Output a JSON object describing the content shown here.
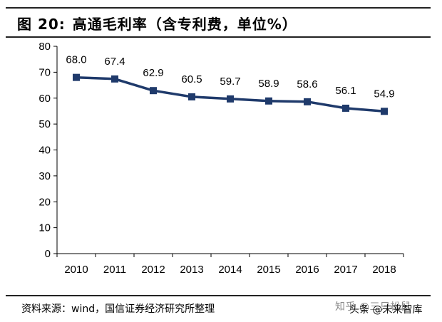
{
  "header": {
    "figure_label": "图 20:",
    "title": "高通毛利率（含专利费，单位%）"
  },
  "footer": {
    "source": "资料来源：wind，国信证券经济研究所整理",
    "watermark_faint": "知乎 @三只松鼠",
    "watermark": "头条 @未来智库"
  },
  "chart_data": {
    "type": "line",
    "title": "高通毛利率（含专利费，单位%）",
    "xlabel": "",
    "ylabel": "",
    "categories": [
      "2010",
      "2011",
      "2012",
      "2013",
      "2014",
      "2015",
      "2016",
      "2017",
      "2018"
    ],
    "series": [
      {
        "values": [
          68.0,
          67.4,
          62.9,
          60.5,
          59.7,
          58.9,
          58.6,
          56.1,
          54.9
        ]
      }
    ],
    "data_labels": [
      "68.0",
      "67.4",
      "62.9",
      "60.5",
      "59.7",
      "58.9",
      "58.6",
      "56.1",
      "54.9"
    ],
    "ylim": [
      0,
      80
    ],
    "yticks": [
      0,
      10,
      20,
      30,
      40,
      50,
      60,
      70,
      80
    ],
    "grid": false,
    "legend": "none",
    "colors": {
      "line": "#1f3a6b",
      "marker": "#1f3a6b",
      "axis": "#000000"
    }
  }
}
